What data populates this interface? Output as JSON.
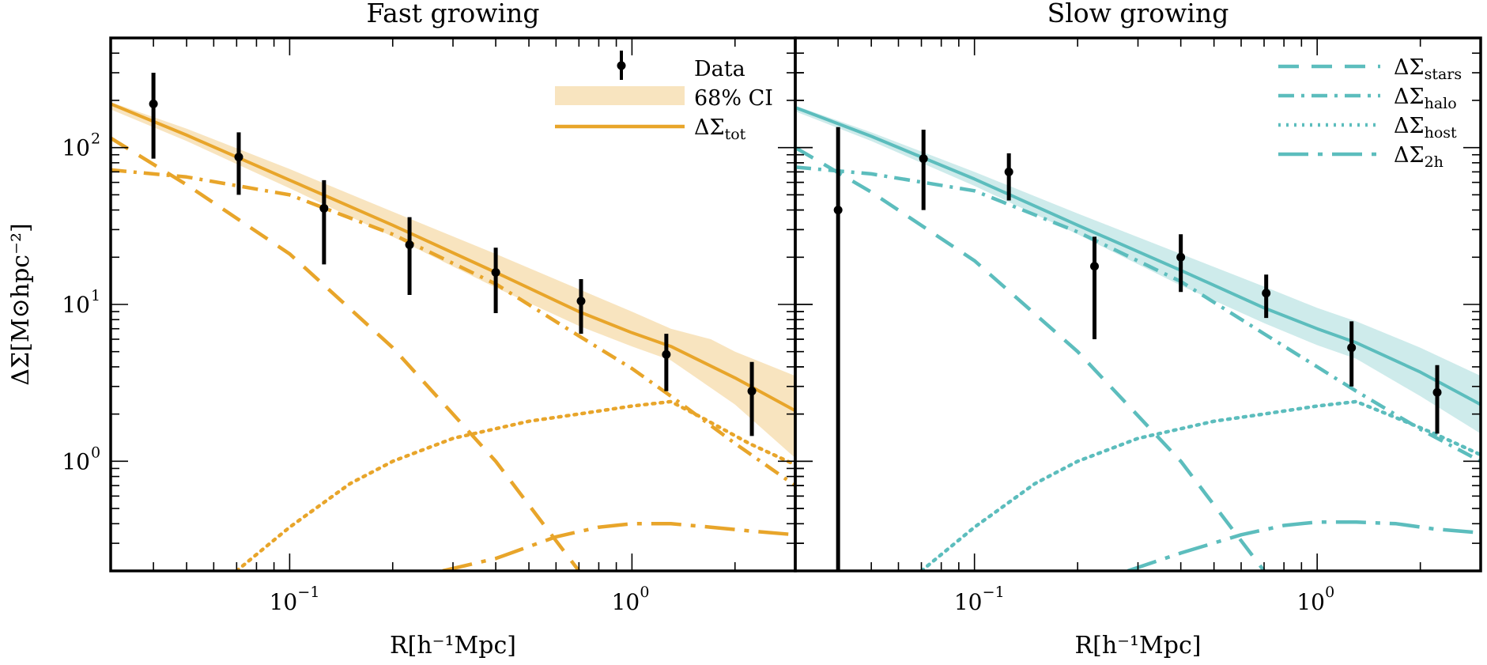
{
  "figure": {
    "ylabel": "ΔΣ[M⊙hpc⁻²]",
    "y_ticks": [
      {
        "v": 1,
        "base": "10",
        "exp": "0"
      },
      {
        "v": 10,
        "base": "10",
        "exp": "1"
      },
      {
        "v": 100,
        "base": "10",
        "exp": "2"
      }
    ],
    "x_ticks": [
      {
        "v": 0.1,
        "base": "10",
        "exp": "−1"
      },
      {
        "v": 1,
        "base": "10",
        "exp": "0"
      }
    ]
  },
  "chart_data": [
    {
      "type": "line",
      "title": "Fast growing",
      "xlabel": "R[h⁻¹Mpc]",
      "ylabel": "ΔΣ[M⊙hpc⁻²]",
      "x_scale": "log",
      "y_scale": "log",
      "xlim": [
        0.03,
        3.0
      ],
      "ylim": [
        0.2,
        500
      ],
      "color": "#E8A52A",
      "legend": {
        "placement": "top-right",
        "items": [
          {
            "kind": "errorbar",
            "label": "Data"
          },
          {
            "kind": "band",
            "label": "68% CI"
          },
          {
            "kind": "solid",
            "label": "ΔΣ",
            "sub": "tot"
          }
        ]
      },
      "data_points": [
        {
          "x": 0.04,
          "y": 190,
          "ylo": 85,
          "yhi": 300
        },
        {
          "x": 0.071,
          "y": 87,
          "ylo": 50,
          "yhi": 125
        },
        {
          "x": 0.126,
          "y": 41,
          "ylo": 18,
          "yhi": 62
        },
        {
          "x": 0.224,
          "y": 24,
          "ylo": 11.5,
          "yhi": 36
        },
        {
          "x": 0.4,
          "y": 16,
          "ylo": 8.8,
          "yhi": 23
        },
        {
          "x": 0.71,
          "y": 10.5,
          "ylo": 6.5,
          "yhi": 14.5
        },
        {
          "x": 1.26,
          "y": 4.8,
          "ylo": 2.8,
          "yhi": 6.5
        },
        {
          "x": 2.24,
          "y": 2.8,
          "ylo": 1.45,
          "yhi": 4.3
        }
      ],
      "series": [
        {
          "name": "ΔΣ_tot",
          "style": "solid",
          "x": [
            0.03,
            0.05,
            0.1,
            0.2,
            0.4,
            0.7,
            1.0,
            1.3,
            2.0,
            3.0
          ],
          "y": [
            190,
            120,
            62,
            32,
            16,
            9,
            6.6,
            5.4,
            3.4,
            2.1
          ]
        },
        {
          "name": "CI_upper",
          "style": "band",
          "x": [
            0.03,
            0.05,
            0.1,
            0.2,
            0.4,
            0.7,
            1.0,
            1.3,
            1.7,
            2.0,
            3.0
          ],
          "y": [
            195,
            132,
            73,
            39,
            21,
            12.5,
            9,
            7,
            6,
            5,
            3.5
          ]
        },
        {
          "name": "CI_lower",
          "style": "band",
          "x": [
            0.03,
            0.05,
            0.1,
            0.2,
            0.4,
            0.7,
            1.0,
            1.3,
            2.0,
            3.0
          ],
          "y": [
            175,
            110,
            55,
            27,
            12.8,
            7.3,
            5.4,
            4.4,
            2.3,
            1.05
          ]
        },
        {
          "name": "ΔΣ_stars",
          "style": "dashed",
          "x": [
            0.03,
            0.05,
            0.1,
            0.2,
            0.4,
            0.7
          ],
          "y": [
            115,
            58,
            21,
            5.3,
            1.0,
            0.2
          ]
        },
        {
          "name": "ΔΣ_halo",
          "style": "dashdot",
          "x": [
            0.03,
            0.05,
            0.1,
            0.2,
            0.4,
            0.7,
            1.0,
            1.3,
            2.0,
            3.0
          ],
          "y": [
            72,
            65,
            50,
            28,
            13.5,
            6.3,
            3.9,
            2.6,
            1.3,
            0.7
          ]
        },
        {
          "name": "ΔΣ_host",
          "style": "dotted",
          "x": [
            0.07,
            0.1,
            0.15,
            0.2,
            0.3,
            0.5,
            0.7,
            1.0,
            1.3,
            1.6,
            2.2,
            3.0
          ],
          "y": [
            0.2,
            0.38,
            0.72,
            1.0,
            1.4,
            1.8,
            2.0,
            2.25,
            2.4,
            1.9,
            1.3,
            0.95
          ]
        },
        {
          "name": "ΔΣ_2h",
          "style": "longdashdot",
          "x": [
            0.28,
            0.4,
            0.6,
            0.8,
            1.0,
            1.3,
            1.7,
            2.2,
            3.0
          ],
          "y": [
            0.2,
            0.24,
            0.33,
            0.38,
            0.4,
            0.4,
            0.38,
            0.36,
            0.34
          ]
        }
      ]
    },
    {
      "type": "line",
      "title": "Slow growing",
      "xlabel": "R[h⁻¹Mpc]",
      "ylabel": "",
      "x_scale": "log",
      "y_scale": "log",
      "xlim": [
        0.03,
        3.0
      ],
      "ylim": [
        0.2,
        500
      ],
      "color": "#5CBDBD",
      "legend": {
        "placement": "top-right",
        "items": [
          {
            "kind": "dashed",
            "label": "ΔΣ",
            "sub": "stars"
          },
          {
            "kind": "dashdot",
            "label": "ΔΣ",
            "sub": "halo"
          },
          {
            "kind": "dotted",
            "label": "ΔΣ",
            "sub": "host"
          },
          {
            "kind": "longdashdot",
            "label": "ΔΣ",
            "sub": "2h"
          }
        ]
      },
      "data_points": [
        {
          "x": 0.04,
          "y": 40,
          "ylo": 0.2,
          "yhi": 135
        },
        {
          "x": 0.071,
          "y": 85,
          "ylo": 40,
          "yhi": 130
        },
        {
          "x": 0.126,
          "y": 70,
          "ylo": 46,
          "yhi": 92
        },
        {
          "x": 0.224,
          "y": 17.5,
          "ylo": 6,
          "yhi": 27
        },
        {
          "x": 0.4,
          "y": 20,
          "ylo": 12,
          "yhi": 28
        },
        {
          "x": 0.71,
          "y": 11.8,
          "ylo": 8.2,
          "yhi": 15.5
        },
        {
          "x": 1.26,
          "y": 5.3,
          "ylo": 3,
          "yhi": 7.8
        },
        {
          "x": 2.24,
          "y": 2.75,
          "ylo": 1.5,
          "yhi": 4.1
        }
      ],
      "series": [
        {
          "name": "ΔΣ_tot",
          "style": "solid",
          "x": [
            0.03,
            0.05,
            0.1,
            0.2,
            0.4,
            0.7,
            1.0,
            1.3,
            2.0,
            3.0
          ],
          "y": [
            180,
            118,
            63,
            32,
            16.5,
            9.5,
            7,
            5.7,
            3.7,
            2.3
          ]
        },
        {
          "name": "CI_upper",
          "style": "band",
          "x": [
            0.03,
            0.05,
            0.1,
            0.2,
            0.4,
            0.7,
            1.0,
            1.3,
            2.0,
            3.0
          ],
          "y": [
            185,
            125,
            70,
            38,
            21,
            13,
            9.5,
            7.8,
            5.3,
            3.5
          ]
        },
        {
          "name": "CI_lower",
          "style": "band",
          "x": [
            0.03,
            0.05,
            0.1,
            0.2,
            0.4,
            0.7,
            1.0,
            1.3,
            2.0,
            3.0
          ],
          "y": [
            170,
            110,
            57,
            28,
            13.2,
            7.6,
            5.5,
            4.5,
            2.6,
            1.5
          ]
        },
        {
          "name": "ΔΣ_stars",
          "style": "dashed",
          "x": [
            0.03,
            0.05,
            0.1,
            0.2,
            0.4,
            0.7
          ],
          "y": [
            100,
            52,
            19,
            5.0,
            1.0,
            0.2
          ]
        },
        {
          "name": "ΔΣ_halo",
          "style": "dashdot",
          "x": [
            0.03,
            0.05,
            0.1,
            0.2,
            0.4,
            0.7,
            1.0,
            1.3,
            2.0,
            3.0
          ],
          "y": [
            75,
            68,
            53,
            29,
            14,
            6.5,
            4.0,
            2.8,
            1.6,
            1.0
          ]
        },
        {
          "name": "ΔΣ_host",
          "style": "dotted",
          "x": [
            0.07,
            0.1,
            0.15,
            0.2,
            0.3,
            0.5,
            0.7,
            1.0,
            1.3,
            1.6,
            2.2,
            3.0
          ],
          "y": [
            0.2,
            0.38,
            0.72,
            1.0,
            1.4,
            1.8,
            2.0,
            2.25,
            2.4,
            2.0,
            1.5,
            1.1
          ]
        },
        {
          "name": "ΔΣ_2h",
          "style": "longdashdot",
          "x": [
            0.28,
            0.4,
            0.6,
            0.8,
            1.0,
            1.3,
            1.7,
            2.2,
            3.0
          ],
          "y": [
            0.2,
            0.26,
            0.34,
            0.39,
            0.41,
            0.41,
            0.4,
            0.37,
            0.35
          ]
        }
      ]
    }
  ]
}
